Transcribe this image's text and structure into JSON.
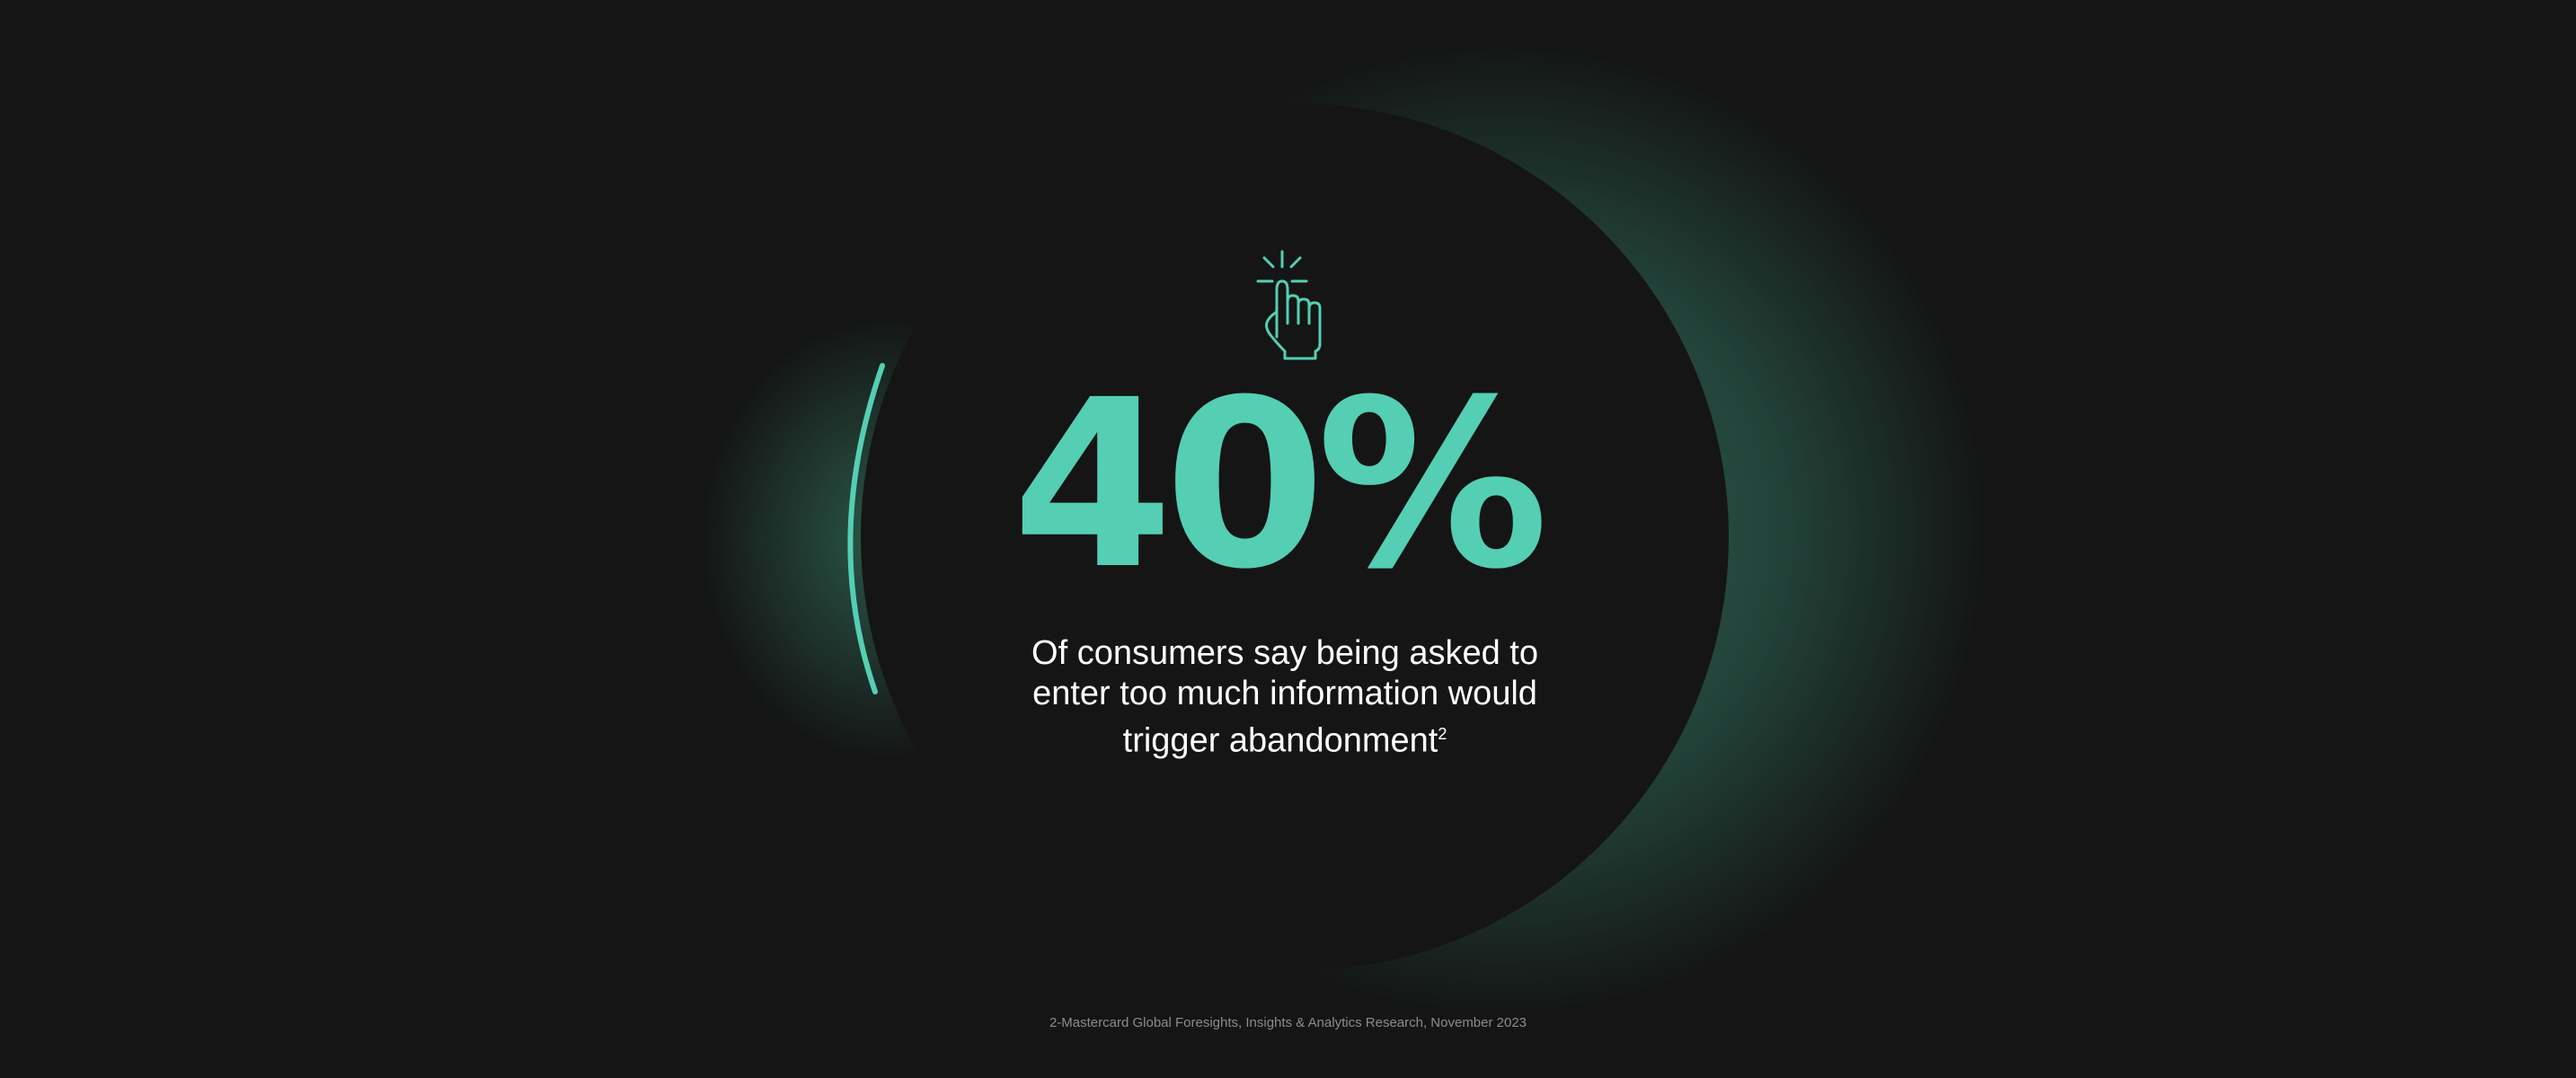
{
  "stat": {
    "value": "40%",
    "icon": "hand-pointer-click-icon"
  },
  "description": {
    "text": "Of consumers say being asked to enter too much information would trigger abandonment",
    "footnote_mark": "2"
  },
  "footer": {
    "citation": "2-Mastercard Global Foresights, Insights & Analytics Research, November 2023"
  },
  "colors": {
    "accent": "#54cfb3",
    "background": "#141514",
    "text": "#ffffff"
  }
}
